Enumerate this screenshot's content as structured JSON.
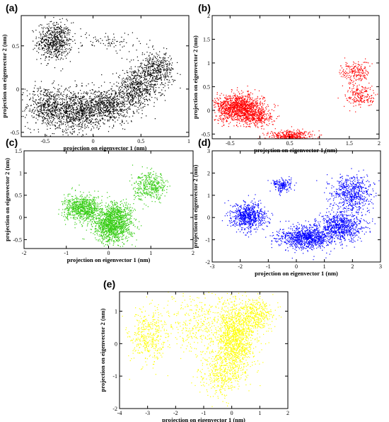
{
  "chart_data": [
    {
      "panel": "(a)",
      "type": "scatter",
      "color": "#000000",
      "xlabel": "projection on eigenvector 1 (nm)",
      "ylabel": "projection on eigenvector 2 (nm)",
      "xlim": [
        -0.75,
        1.0
      ],
      "ylim": [
        -0.55,
        0.85
      ],
      "xticks": [
        -0.5,
        0,
        0.5,
        1
      ],
      "xtick_labels": [
        "-0.5",
        "0",
        "0.5",
        "1"
      ],
      "yticks": [
        -0.5,
        0,
        0.5
      ],
      "ytick_labels": [
        "-0.5",
        "0",
        "0.5"
      ],
      "clusters": [
        {
          "center": [
            -0.4,
            0.55
          ],
          "spread": [
            0.09,
            0.11
          ],
          "count": 600
        },
        {
          "center": [
            -0.5,
            -0.2
          ],
          "spread": [
            0.1,
            0.12
          ],
          "count": 400
        },
        {
          "center": [
            -0.2,
            -0.25
          ],
          "spread": [
            0.14,
            0.12
          ],
          "count": 800
        },
        {
          "center": [
            0.15,
            -0.2
          ],
          "spread": [
            0.14,
            0.1
          ],
          "count": 700
        },
        {
          "center": [
            0.45,
            0.0
          ],
          "spread": [
            0.12,
            0.1
          ],
          "count": 500
        },
        {
          "center": [
            0.65,
            0.22
          ],
          "spread": [
            0.1,
            0.1
          ],
          "count": 450
        },
        {
          "center": [
            0.2,
            0.55
          ],
          "spread": [
            0.15,
            0.06
          ],
          "count": 80
        }
      ]
    },
    {
      "panel": "(b)",
      "type": "scatter",
      "color": "#ff0000",
      "xlabel": "projection on eigenvector 1 (nm)",
      "ylabel": "projection on eigenvector 2 (nm)",
      "xlim": [
        -0.8,
        2.0
      ],
      "ylim": [
        -0.6,
        2.0
      ],
      "xticks": [
        -0.5,
        0,
        0.5,
        1,
        1.5,
        2
      ],
      "xtick_labels": [
        "-0.5",
        "0",
        "0.5",
        "1",
        "1.5",
        "2"
      ],
      "yticks": [
        -0.5,
        0,
        0.5,
        1,
        1.5,
        2
      ],
      "ytick_labels": [
        "-0.5",
        "0",
        "0.5",
        "1",
        "1.5",
        "2"
      ],
      "clusters": [
        {
          "center": [
            -0.35,
            0.05
          ],
          "spread": [
            0.2,
            0.14
          ],
          "count": 1300
        },
        {
          "center": [
            -0.05,
            -0.15
          ],
          "spread": [
            0.15,
            0.1
          ],
          "count": 300
        },
        {
          "center": [
            0.5,
            -0.58
          ],
          "spread": [
            0.18,
            0.08
          ],
          "count": 600
        },
        {
          "center": [
            1.6,
            0.8
          ],
          "spread": [
            0.12,
            0.12
          ],
          "count": 200
        },
        {
          "center": [
            1.7,
            0.3
          ],
          "spread": [
            0.13,
            0.12
          ],
          "count": 200
        }
      ]
    },
    {
      "panel": "(c)",
      "type": "scatter",
      "color": "#33cc11",
      "xlabel": "projection on eigenvector 1 (nm)",
      "ylabel": "projection on eigenvector 2 (nm)",
      "xlim": [
        -2.0,
        2.0
      ],
      "ylim": [
        -0.7,
        1.5
      ],
      "xticks": [
        -2,
        -1,
        0,
        1,
        2
      ],
      "xtick_labels": [
        "-2",
        "-1",
        "0",
        "1",
        "2"
      ],
      "yticks": [
        -0.5,
        0,
        0.5,
        1,
        1.5
      ],
      "ytick_labels": [
        "-0.5",
        "0",
        "0.5",
        "1",
        "1.5"
      ],
      "clusters": [
        {
          "center": [
            -0.6,
            0.2
          ],
          "spread": [
            0.22,
            0.14
          ],
          "count": 800
        },
        {
          "center": [
            0.1,
            -0.2
          ],
          "spread": [
            0.22,
            0.18
          ],
          "count": 1100
        },
        {
          "center": [
            0.2,
            0.1
          ],
          "spread": [
            0.2,
            0.12
          ],
          "count": 300
        },
        {
          "center": [
            1.0,
            0.7
          ],
          "spread": [
            0.2,
            0.15
          ],
          "count": 400
        }
      ]
    },
    {
      "panel": "(d)",
      "type": "scatter",
      "color": "#0000ff",
      "xlabel": "projection on eigenvector 1 (nm)",
      "ylabel": "projection on eigenvector 2 (nm)",
      "xlim": [
        -3.0,
        3.0
      ],
      "ylim": [
        -2.0,
        3.0
      ],
      "xticks": [
        -3,
        -2,
        -1,
        0,
        1,
        2,
        3
      ],
      "xtick_labels": [
        "-3",
        "-2",
        "-1",
        "0",
        "1",
        "2",
        "3"
      ],
      "yticks": [
        -2,
        -1,
        0,
        1,
        2,
        3
      ],
      "ytick_labels": [
        "-2",
        "-1",
        "0",
        "1",
        "2",
        "3"
      ],
      "clusters": [
        {
          "center": [
            -1.7,
            0.05
          ],
          "spread": [
            0.3,
            0.3
          ],
          "count": 700
        },
        {
          "center": [
            -0.5,
            1.45
          ],
          "spread": [
            0.17,
            0.15
          ],
          "count": 180
        },
        {
          "center": [
            0.4,
            -0.9
          ],
          "spread": [
            0.5,
            0.25
          ],
          "count": 1000
        },
        {
          "center": [
            1.6,
            -0.4
          ],
          "spread": [
            0.4,
            0.3
          ],
          "count": 700
        },
        {
          "center": [
            2.0,
            1.1
          ],
          "spread": [
            0.35,
            0.4
          ],
          "count": 600
        }
      ]
    },
    {
      "panel": "(e)",
      "type": "scatter",
      "color": "#ffff00",
      "xlabel": "projection on eigenvector 1 (nm)",
      "ylabel": "projection on eigenvector 2 (nm)",
      "xlim": [
        -4.0,
        2.0
      ],
      "ylim": [
        -2.0,
        1.6
      ],
      "xticks": [
        -4,
        -3,
        -2,
        -1,
        0,
        1,
        2
      ],
      "xtick_labels": [
        "-4",
        "-3",
        "-2",
        "-1",
        "0",
        "1",
        "2"
      ],
      "yticks": [
        -2,
        -1,
        0,
        1
      ],
      "ytick_labels": [
        "-2",
        "-1",
        "0",
        "1"
      ],
      "clusters": [
        {
          "center": [
            -3.0,
            0.2
          ],
          "spread": [
            0.35,
            0.45
          ],
          "count": 400
        },
        {
          "center": [
            -1.2,
            0.5
          ],
          "spread": [
            0.6,
            0.5
          ],
          "count": 350
        },
        {
          "center": [
            0.15,
            0.2
          ],
          "spread": [
            0.35,
            0.55
          ],
          "count": 1300
        },
        {
          "center": [
            -0.4,
            -0.9
          ],
          "spread": [
            0.35,
            0.35
          ],
          "count": 400
        },
        {
          "center": [
            0.9,
            0.9
          ],
          "spread": [
            0.3,
            0.25
          ],
          "count": 350
        }
      ]
    }
  ]
}
